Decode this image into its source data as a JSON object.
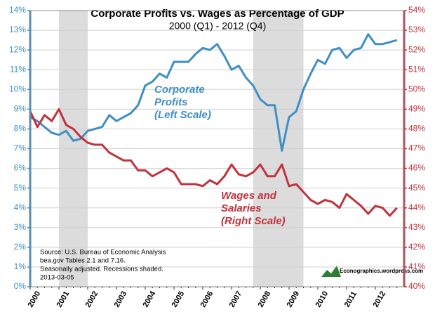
{
  "chart_data": {
    "type": "line",
    "title": "Corporate Profits vs. Wages as Percentage of GDP",
    "subtitle": "2000 (Q1) - 2012 (Q4)",
    "categories": [
      "2000",
      null,
      null,
      null,
      "2001",
      null,
      null,
      null,
      "2002",
      null,
      null,
      null,
      "2003",
      null,
      null,
      null,
      "2004",
      null,
      null,
      null,
      "2005",
      null,
      null,
      null,
      "2006",
      null,
      null,
      null,
      "2007",
      null,
      null,
      null,
      "2008",
      null,
      null,
      null,
      "2009",
      null,
      null,
      null,
      "2010",
      null,
      null,
      null,
      "2011",
      null,
      null,
      null,
      "2012",
      null,
      null,
      null
    ],
    "series": [
      {
        "name": "Corporate Profits (Left Scale)",
        "color": "#3f8fc5",
        "axis": "y",
        "label_lines": [
          "Corporate",
          "Profits",
          "(Left Scale)"
        ],
        "values": [
          8.6,
          8.4,
          8.1,
          7.8,
          7.7,
          7.9,
          7.4,
          7.5,
          7.9,
          8.0,
          8.1,
          8.7,
          8.4,
          8.6,
          8.8,
          9.2,
          10.2,
          10.4,
          10.8,
          10.6,
          11.4,
          11.4,
          11.4,
          11.8,
          12.1,
          12.0,
          12.3,
          11.7,
          11.0,
          11.2,
          10.6,
          10.2,
          9.5,
          9.2,
          9.2,
          6.9,
          8.6,
          8.9,
          10.0,
          10.8,
          11.5,
          11.3,
          12.0,
          12.1,
          11.6,
          12.0,
          12.1,
          12.8,
          12.3,
          12.3,
          12.4,
          12.5
        ]
      },
      {
        "name": "Wages and Salaries (Right Scale)",
        "color": "#c1323c",
        "axis": "y2",
        "label_lines": [
          "Wages and",
          "Salaries",
          "(Right Scale)"
        ],
        "values": [
          48.9,
          48.1,
          48.7,
          48.4,
          49.0,
          48.2,
          48.0,
          47.6,
          47.3,
          47.2,
          47.2,
          46.8,
          46.6,
          46.4,
          46.4,
          45.9,
          45.9,
          45.6,
          45.8,
          46.0,
          45.8,
          45.2,
          45.2,
          45.2,
          45.1,
          45.4,
          45.2,
          45.6,
          46.2,
          45.7,
          45.6,
          45.8,
          46.2,
          45.6,
          45.6,
          46.2,
          45.1,
          45.2,
          44.8,
          44.4,
          44.2,
          44.4,
          44.3,
          44.0,
          44.7,
          44.4,
          44.1,
          43.7,
          44.1,
          44.0,
          43.6,
          44.0
        ]
      }
    ],
    "ylim": [
      0,
      14
    ],
    "yticks": [
      {
        "value": 0,
        "label": "0%"
      },
      {
        "value": 1,
        "label": "1%"
      },
      {
        "value": 2,
        "label": "2%"
      },
      {
        "value": 3,
        "label": "3%"
      },
      {
        "value": 4,
        "label": "4%"
      },
      {
        "value": 5,
        "label": "5%"
      },
      {
        "value": 6,
        "label": "6%"
      },
      {
        "value": 7,
        "label": "7%"
      },
      {
        "value": 8,
        "label": "8%"
      },
      {
        "value": 9,
        "label": "9%"
      },
      {
        "value": 10,
        "label": "10%"
      },
      {
        "value": 11,
        "label": "11%"
      },
      {
        "value": 12,
        "label": "12%"
      },
      {
        "value": 13,
        "label": "13%"
      },
      {
        "value": 14,
        "label": "14%"
      }
    ],
    "y2lim": [
      40,
      54
    ],
    "y2ticks": [
      {
        "value": 40,
        "label": "40%"
      },
      {
        "value": 41,
        "label": "41%"
      },
      {
        "value": 42,
        "label": "42%"
      },
      {
        "value": 43,
        "label": "43%"
      },
      {
        "value": 44,
        "label": "44%"
      },
      {
        "value": 45,
        "label": "45%"
      },
      {
        "value": 46,
        "label": "46%"
      },
      {
        "value": 47,
        "label": "47%"
      },
      {
        "value": 48,
        "label": "48%"
      },
      {
        "value": 49,
        "label": "49%"
      },
      {
        "value": 50,
        "label": "50%"
      },
      {
        "value": 51,
        "label": "51%"
      },
      {
        "value": 52,
        "label": "52%"
      },
      {
        "value": 53,
        "label": "53%"
      },
      {
        "value": 54,
        "label": "54%"
      }
    ],
    "grid": true,
    "shaded": [
      [
        4,
        8
      ],
      [
        31,
        38
      ]
    ],
    "shade_color": "#dcdcdc",
    "source_lines": [
      "Source:  U.S. Bureau of Economic Analysis",
      "bea.gov Tables 2.1 and 7.16.",
      "Seasonally adjusted. Recessions shaded.",
      "2013-03-05"
    ],
    "logo": "Econographics.wordpress.com"
  }
}
